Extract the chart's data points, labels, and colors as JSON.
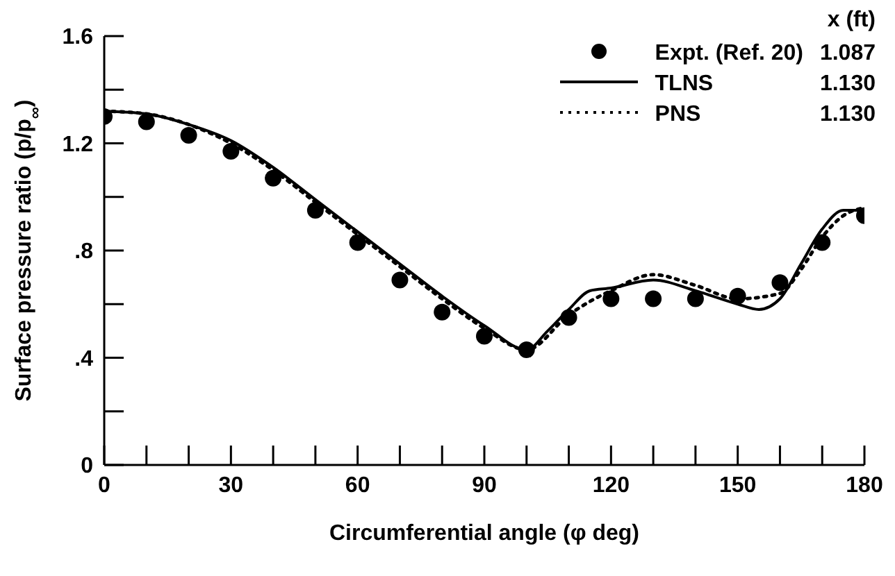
{
  "chart_data": {
    "type": "line",
    "xlabel": "Circumferential angle (φ deg)",
    "ylabel": "Surface pressure ratio (p/p$_{∞}$)",
    "legend_title": "x (ft)",
    "legend": "top right",
    "grid": false,
    "xlim": [
      0,
      180
    ],
    "xticks": [
      0,
      {
        "value": 10,
        "label": null
      },
      {
        "value": 20,
        "label": null
      },
      30,
      {
        "value": 40,
        "label": null
      },
      {
        "value": 50,
        "label": null
      },
      60,
      {
        "value": 70,
        "label": null
      },
      {
        "value": 80,
        "label": null
      },
      90,
      {
        "value": 100,
        "label": null
      },
      {
        "value": 110,
        "label": null
      },
      120,
      {
        "value": 130,
        "label": null
      },
      {
        "value": 140,
        "label": null
      },
      150,
      {
        "value": 160,
        "label": null
      },
      {
        "value": 170,
        "label": null
      },
      180
    ],
    "ylim": [
      0,
      1.6
    ],
    "yticks": [
      0,
      {
        "value": 0.2,
        "label": null
      },
      {
        "value": 0.4,
        "label": ".4"
      },
      {
        "value": 0.6,
        "label": null
      },
      {
        "value": 0.8,
        "label": ".8"
      },
      {
        "value": 1.0,
        "label": null
      },
      1.2,
      {
        "value": 1.4,
        "label": null
      },
      1.6
    ],
    "annotations": [
      "1.087",
      "1.130",
      "1.130"
    ],
    "series": [
      {
        "name": "Expt. (Ref. 20)",
        "type": "scatter",
        "marker": "circle",
        "color": "#000000",
        "x": [
          0,
          10,
          20,
          30,
          40,
          50,
          60,
          70,
          80,
          90,
          100,
          110,
          120,
          130,
          140,
          150,
          160,
          170,
          180
        ],
        "values": [
          1.3,
          1.28,
          1.23,
          1.17,
          1.07,
          0.95,
          0.83,
          0.69,
          0.57,
          0.48,
          0.43,
          0.55,
          0.62,
          0.62,
          0.62,
          0.63,
          0.68,
          0.83,
          0.93
        ]
      },
      {
        "name": "TLNS",
        "type": "line",
        "line_style": "solid",
        "marker": "none",
        "color": "#000000",
        "x": [
          0,
          10,
          20,
          30,
          40,
          50,
          60,
          70,
          80,
          90,
          100,
          105,
          110,
          115,
          120,
          130,
          140,
          150,
          155,
          160,
          165,
          170,
          175,
          180
        ],
        "values": [
          1.32,
          1.31,
          1.27,
          1.21,
          1.11,
          0.99,
          0.87,
          0.75,
          0.63,
          0.52,
          0.43,
          0.5,
          0.58,
          0.65,
          0.66,
          0.69,
          0.65,
          0.6,
          0.58,
          0.62,
          0.75,
          0.88,
          0.95,
          0.95
        ]
      },
      {
        "name": "PNS",
        "type": "line",
        "line_style": "dotted",
        "marker": "none",
        "color": "#000000",
        "x": [
          0,
          10,
          20,
          30,
          40,
          50,
          60,
          70,
          80,
          90,
          100,
          110,
          115,
          120,
          130,
          140,
          150,
          160,
          165,
          170,
          175,
          180
        ],
        "values": [
          1.32,
          1.31,
          1.27,
          1.2,
          1.1,
          0.98,
          0.86,
          0.74,
          0.62,
          0.51,
          0.43,
          0.56,
          0.61,
          0.65,
          0.71,
          0.67,
          0.62,
          0.64,
          0.73,
          0.85,
          0.93,
          0.96
        ]
      }
    ]
  }
}
